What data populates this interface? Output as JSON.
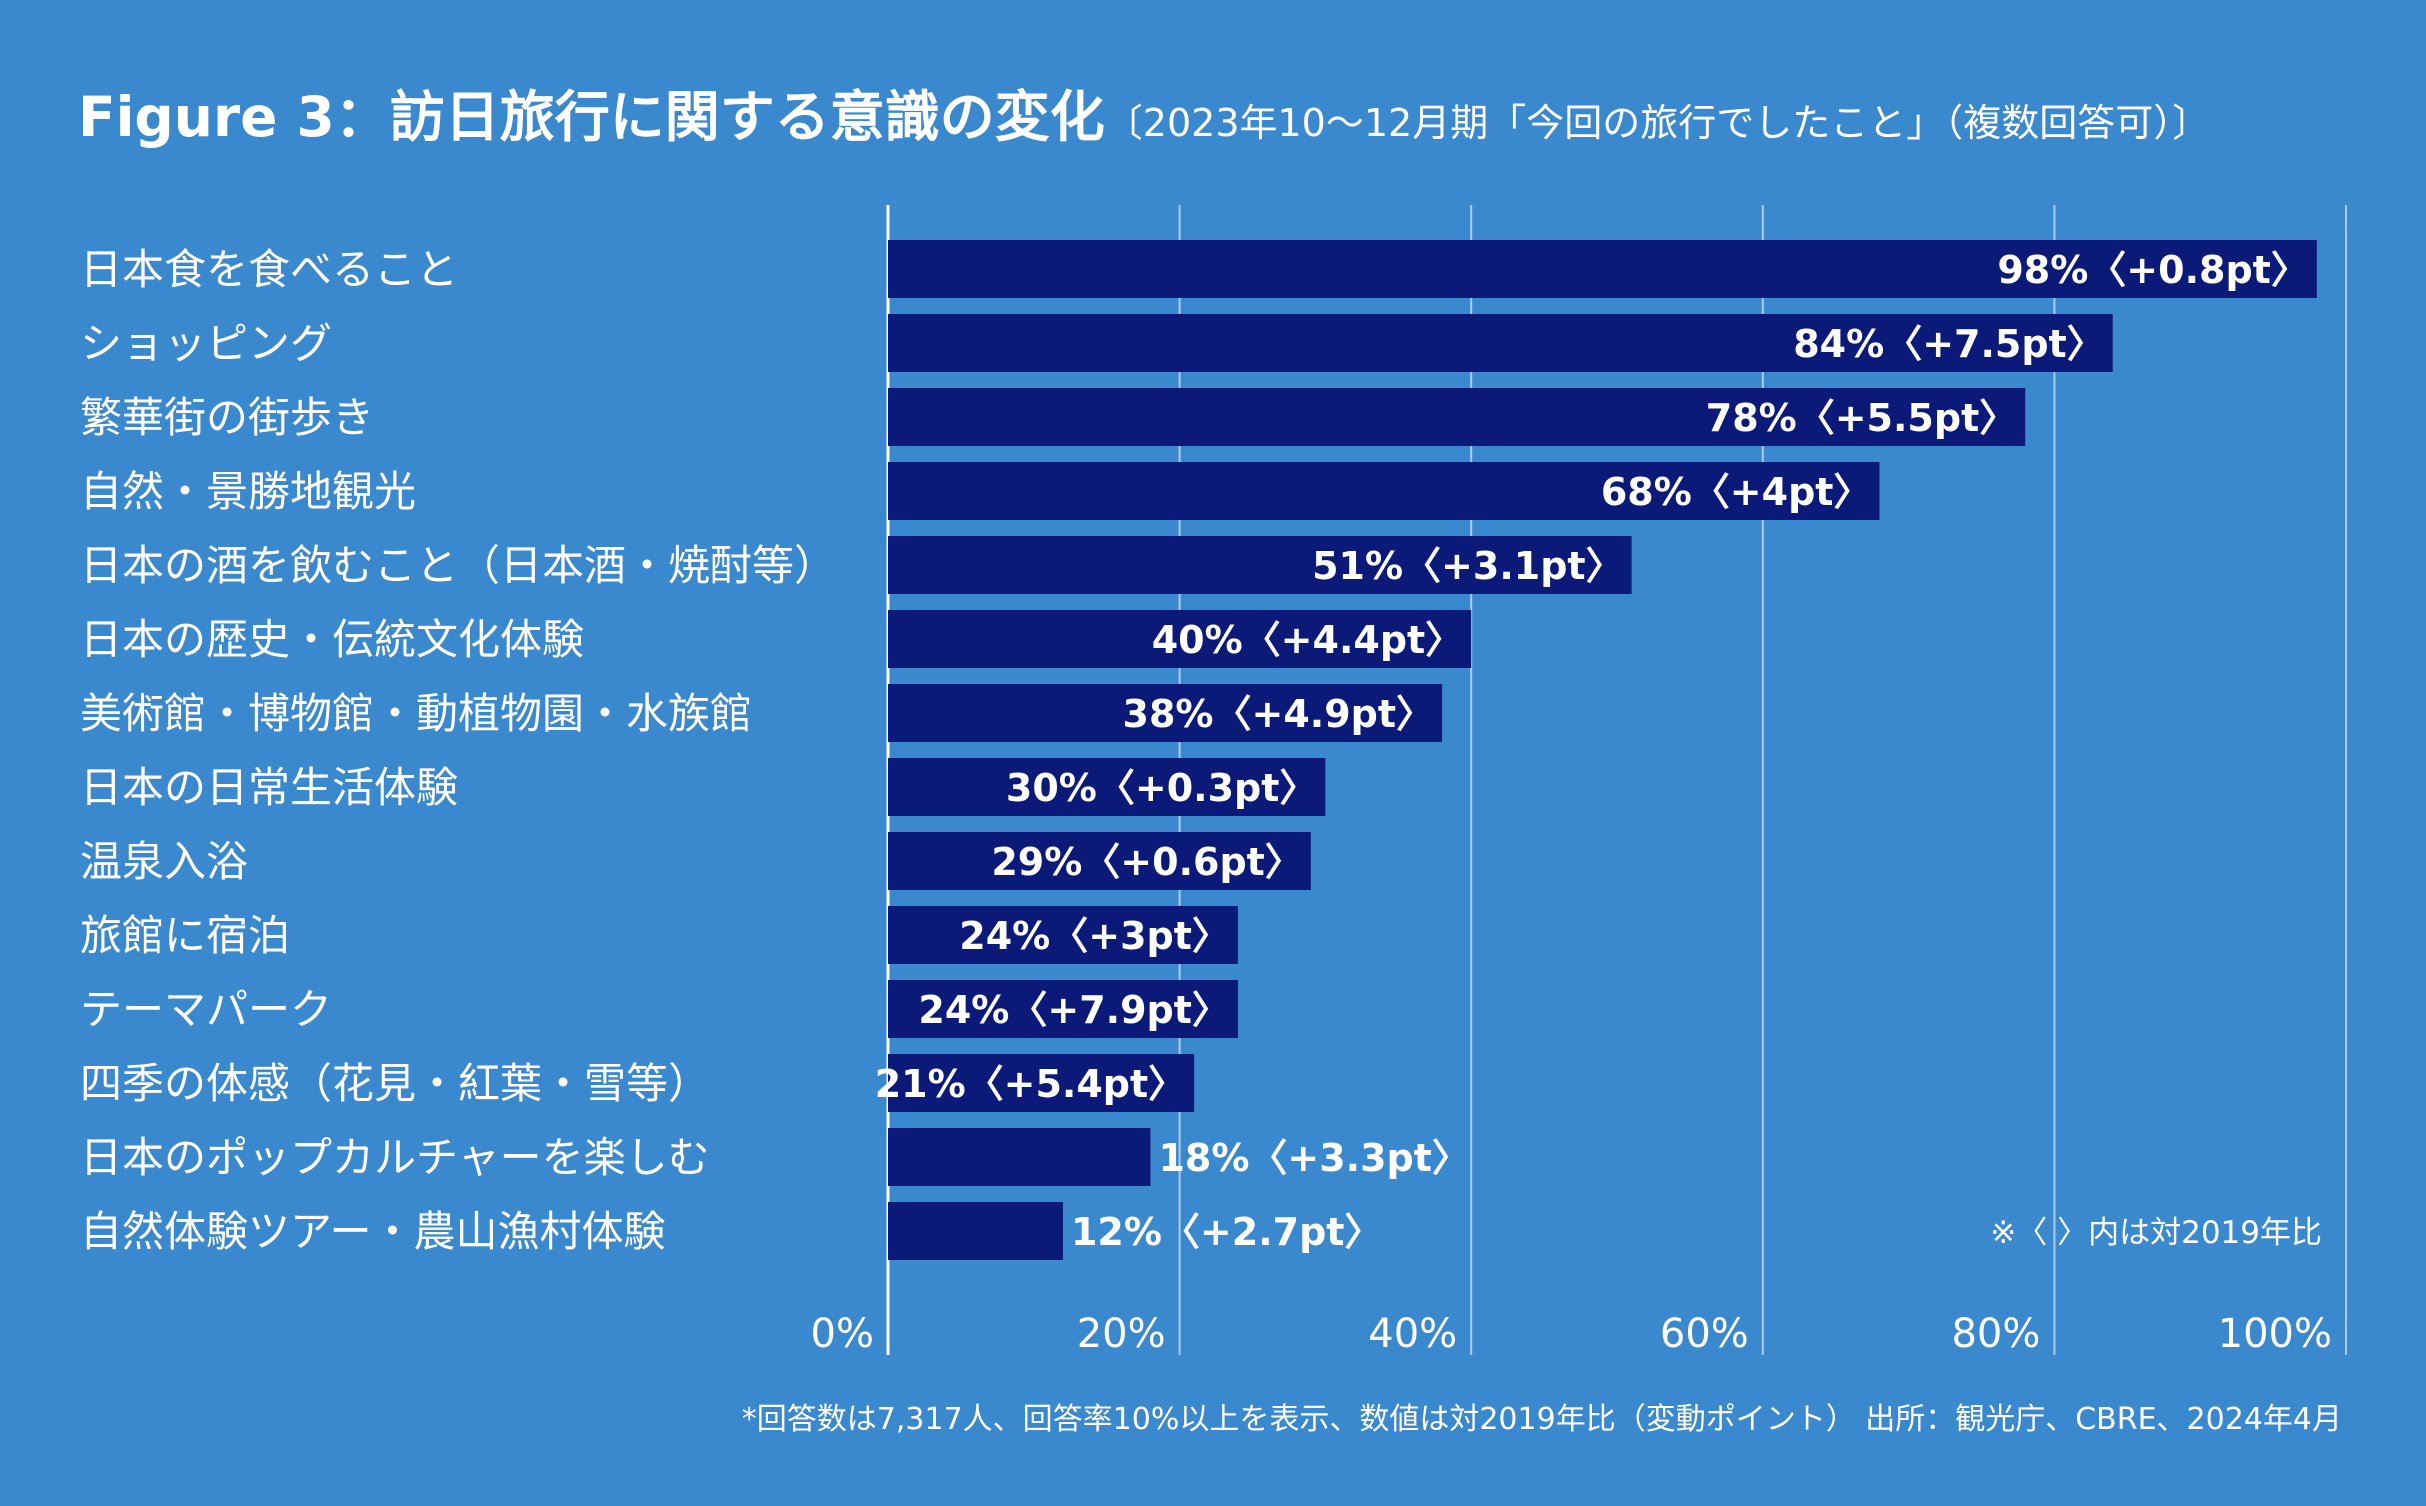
{
  "title": {
    "main": "Figure 3：訪日旅行に関する意識の変化",
    "sub": "〔2023年10〜12月期「今回の旅行でしたこと」（複数回答可）〕"
  },
  "colors": {
    "background": "#3a88cd",
    "bar": "#0b1a78",
    "gridline": "#a9cdef",
    "text": "#ffffff"
  },
  "chart_data": {
    "type": "bar",
    "orientation": "horizontal",
    "categories": [
      "日本食を食べること",
      "ショッピング",
      "繁華街の街歩き",
      "自然・景勝地観光",
      "日本の酒を飲むこと（日本酒・焼酎等）",
      "日本の歴史・伝統文化体験",
      "美術館・博物館・動植物園・水族館",
      "日本の日常生活体験",
      "温泉入浴",
      "旅館に宿泊",
      "テーマパーク",
      "四季の体感（花見・紅葉・雪等）",
      "日本のポップカルチャーを楽しむ",
      "自然体験ツアー・農山漁村体験"
    ],
    "values": [
      98,
      84,
      78,
      68,
      51,
      40,
      38,
      30,
      29,
      24,
      24,
      21,
      18,
      12
    ],
    "data_labels": [
      "98%〈+0.8pt〉",
      "84%〈+7.5pt〉",
      "78%〈+5.5pt〉",
      "68%〈+4pt〉",
      "51%〈+3.1pt〉",
      "40%〈+4.4pt〉",
      "38%〈+4.9pt〉",
      "30%〈+0.3pt〉",
      "29%〈+0.6pt〉",
      "24%〈+3pt〉",
      "24%〈+7.9pt〉",
      "21%〈+5.4pt〉",
      "18%〈+3.3pt〉",
      "12%〈+2.7pt〉"
    ],
    "xlim": [
      0,
      100
    ],
    "x_ticks": [
      0,
      20,
      40,
      60,
      80,
      100
    ],
    "x_tick_labels": [
      "0%",
      "20%",
      "40%",
      "60%",
      "80%",
      "100%"
    ],
    "grid": true,
    "annotation": "※〈 〉内は対2019年比"
  },
  "footnote": "*回答数は7,317人、回答率10%以上を表示、数値は対2019年比（変動ポイント） 出所：観光庁、CBRE、2024年4月"
}
